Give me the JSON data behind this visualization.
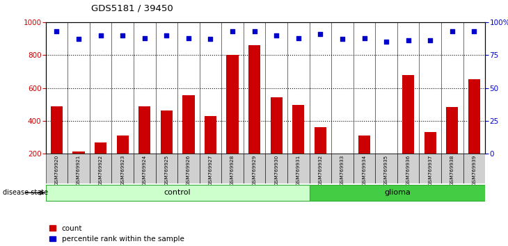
{
  "title": "GDS5181 / 39450",
  "samples": [
    "GSM769920",
    "GSM769921",
    "GSM769922",
    "GSM769923",
    "GSM769924",
    "GSM769925",
    "GSM769926",
    "GSM769927",
    "GSM769928",
    "GSM769929",
    "GSM769930",
    "GSM769931",
    "GSM769932",
    "GSM769933",
    "GSM769934",
    "GSM769935",
    "GSM769936",
    "GSM769937",
    "GSM769938",
    "GSM769939"
  ],
  "counts": [
    490,
    215,
    270,
    310,
    490,
    465,
    555,
    430,
    800,
    860,
    545,
    495,
    360,
    155,
    310,
    155,
    680,
    330,
    485,
    655
  ],
  "percentile_ranks": [
    93,
    87,
    90,
    90,
    88,
    90,
    88,
    87,
    93,
    93,
    90,
    88,
    91,
    87,
    88,
    85,
    86,
    86,
    93,
    93
  ],
  "control_count": 12,
  "glioma_count": 8,
  "bar_color": "#cc0000",
  "dot_color": "#0000cc",
  "control_color": "#ccffcc",
  "glioma_color": "#44cc44",
  "label_bg_color": "#d0d0d0",
  "ymin": 200,
  "ymax": 1000,
  "yticks_left": [
    200,
    400,
    600,
    800,
    1000
  ],
  "pct_min": 0,
  "pct_max": 100,
  "yticks_right": [
    0,
    25,
    50,
    75,
    100
  ],
  "grid_values": [
    400,
    600,
    800
  ],
  "legend_count": "count",
  "legend_pct": "percentile rank within the sample"
}
